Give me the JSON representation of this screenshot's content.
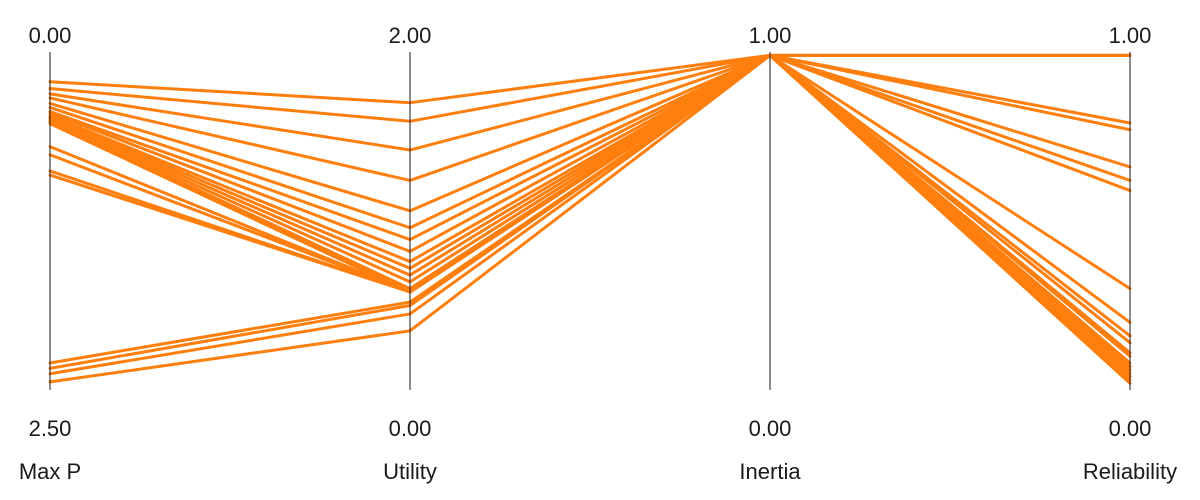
{
  "chart_data": {
    "type": "parallel_coordinates",
    "line_color": "#ff7f0e",
    "axes": [
      {
        "name": "Max P",
        "top_label": "0.00",
        "bottom_label": "2.50",
        "top": 0.0,
        "bottom": 2.5
      },
      {
        "name": "Utility",
        "top_label": "2.00",
        "bottom_label": "0.00",
        "top": 2.0,
        "bottom": 0.0
      },
      {
        "name": "Inertia",
        "top_label": "1.00",
        "bottom_label": "0.00",
        "top": 1.0,
        "bottom": 0.0
      },
      {
        "name": "Reliability",
        "top_label": "1.00",
        "bottom_label": "0.00",
        "top": 1.0,
        "bottom": 0.0
      }
    ],
    "lines": [
      [
        0.22,
        1.7,
        0.99,
        0.99
      ],
      [
        0.27,
        1.59,
        0.99,
        0.99
      ],
      [
        0.31,
        1.42,
        0.99,
        0.99
      ],
      [
        0.34,
        1.24,
        0.99,
        0.99
      ],
      [
        0.38,
        1.06,
        0.99,
        0.79
      ],
      [
        0.41,
        0.96,
        0.99,
        0.77
      ],
      [
        0.44,
        0.89,
        0.99,
        0.62
      ],
      [
        0.45,
        0.82,
        0.99,
        0.66
      ],
      [
        0.47,
        0.76,
        0.99,
        0.59
      ],
      [
        0.48,
        0.72,
        0.99,
        0.3
      ],
      [
        0.49,
        0.68,
        0.99,
        0.14
      ],
      [
        0.5,
        0.64,
        0.99,
        0.2
      ],
      [
        0.51,
        0.6,
        0.99,
        0.08
      ],
      [
        0.52,
        0.58,
        0.99,
        0.06
      ],
      [
        0.53,
        0.58,
        0.99,
        0.07
      ],
      [
        0.7,
        0.58,
        0.99,
        0.1
      ],
      [
        0.76,
        0.58,
        0.99,
        0.16
      ],
      [
        0.88,
        0.58,
        0.99,
        0.11
      ],
      [
        0.91,
        0.58,
        0.99,
        0.04
      ],
      [
        2.3,
        0.52,
        0.99,
        0.05
      ],
      [
        2.34,
        0.5,
        0.99,
        0.03
      ],
      [
        2.38,
        0.45,
        0.99,
        0.04
      ],
      [
        2.44,
        0.35,
        0.99,
        0.02
      ]
    ]
  }
}
